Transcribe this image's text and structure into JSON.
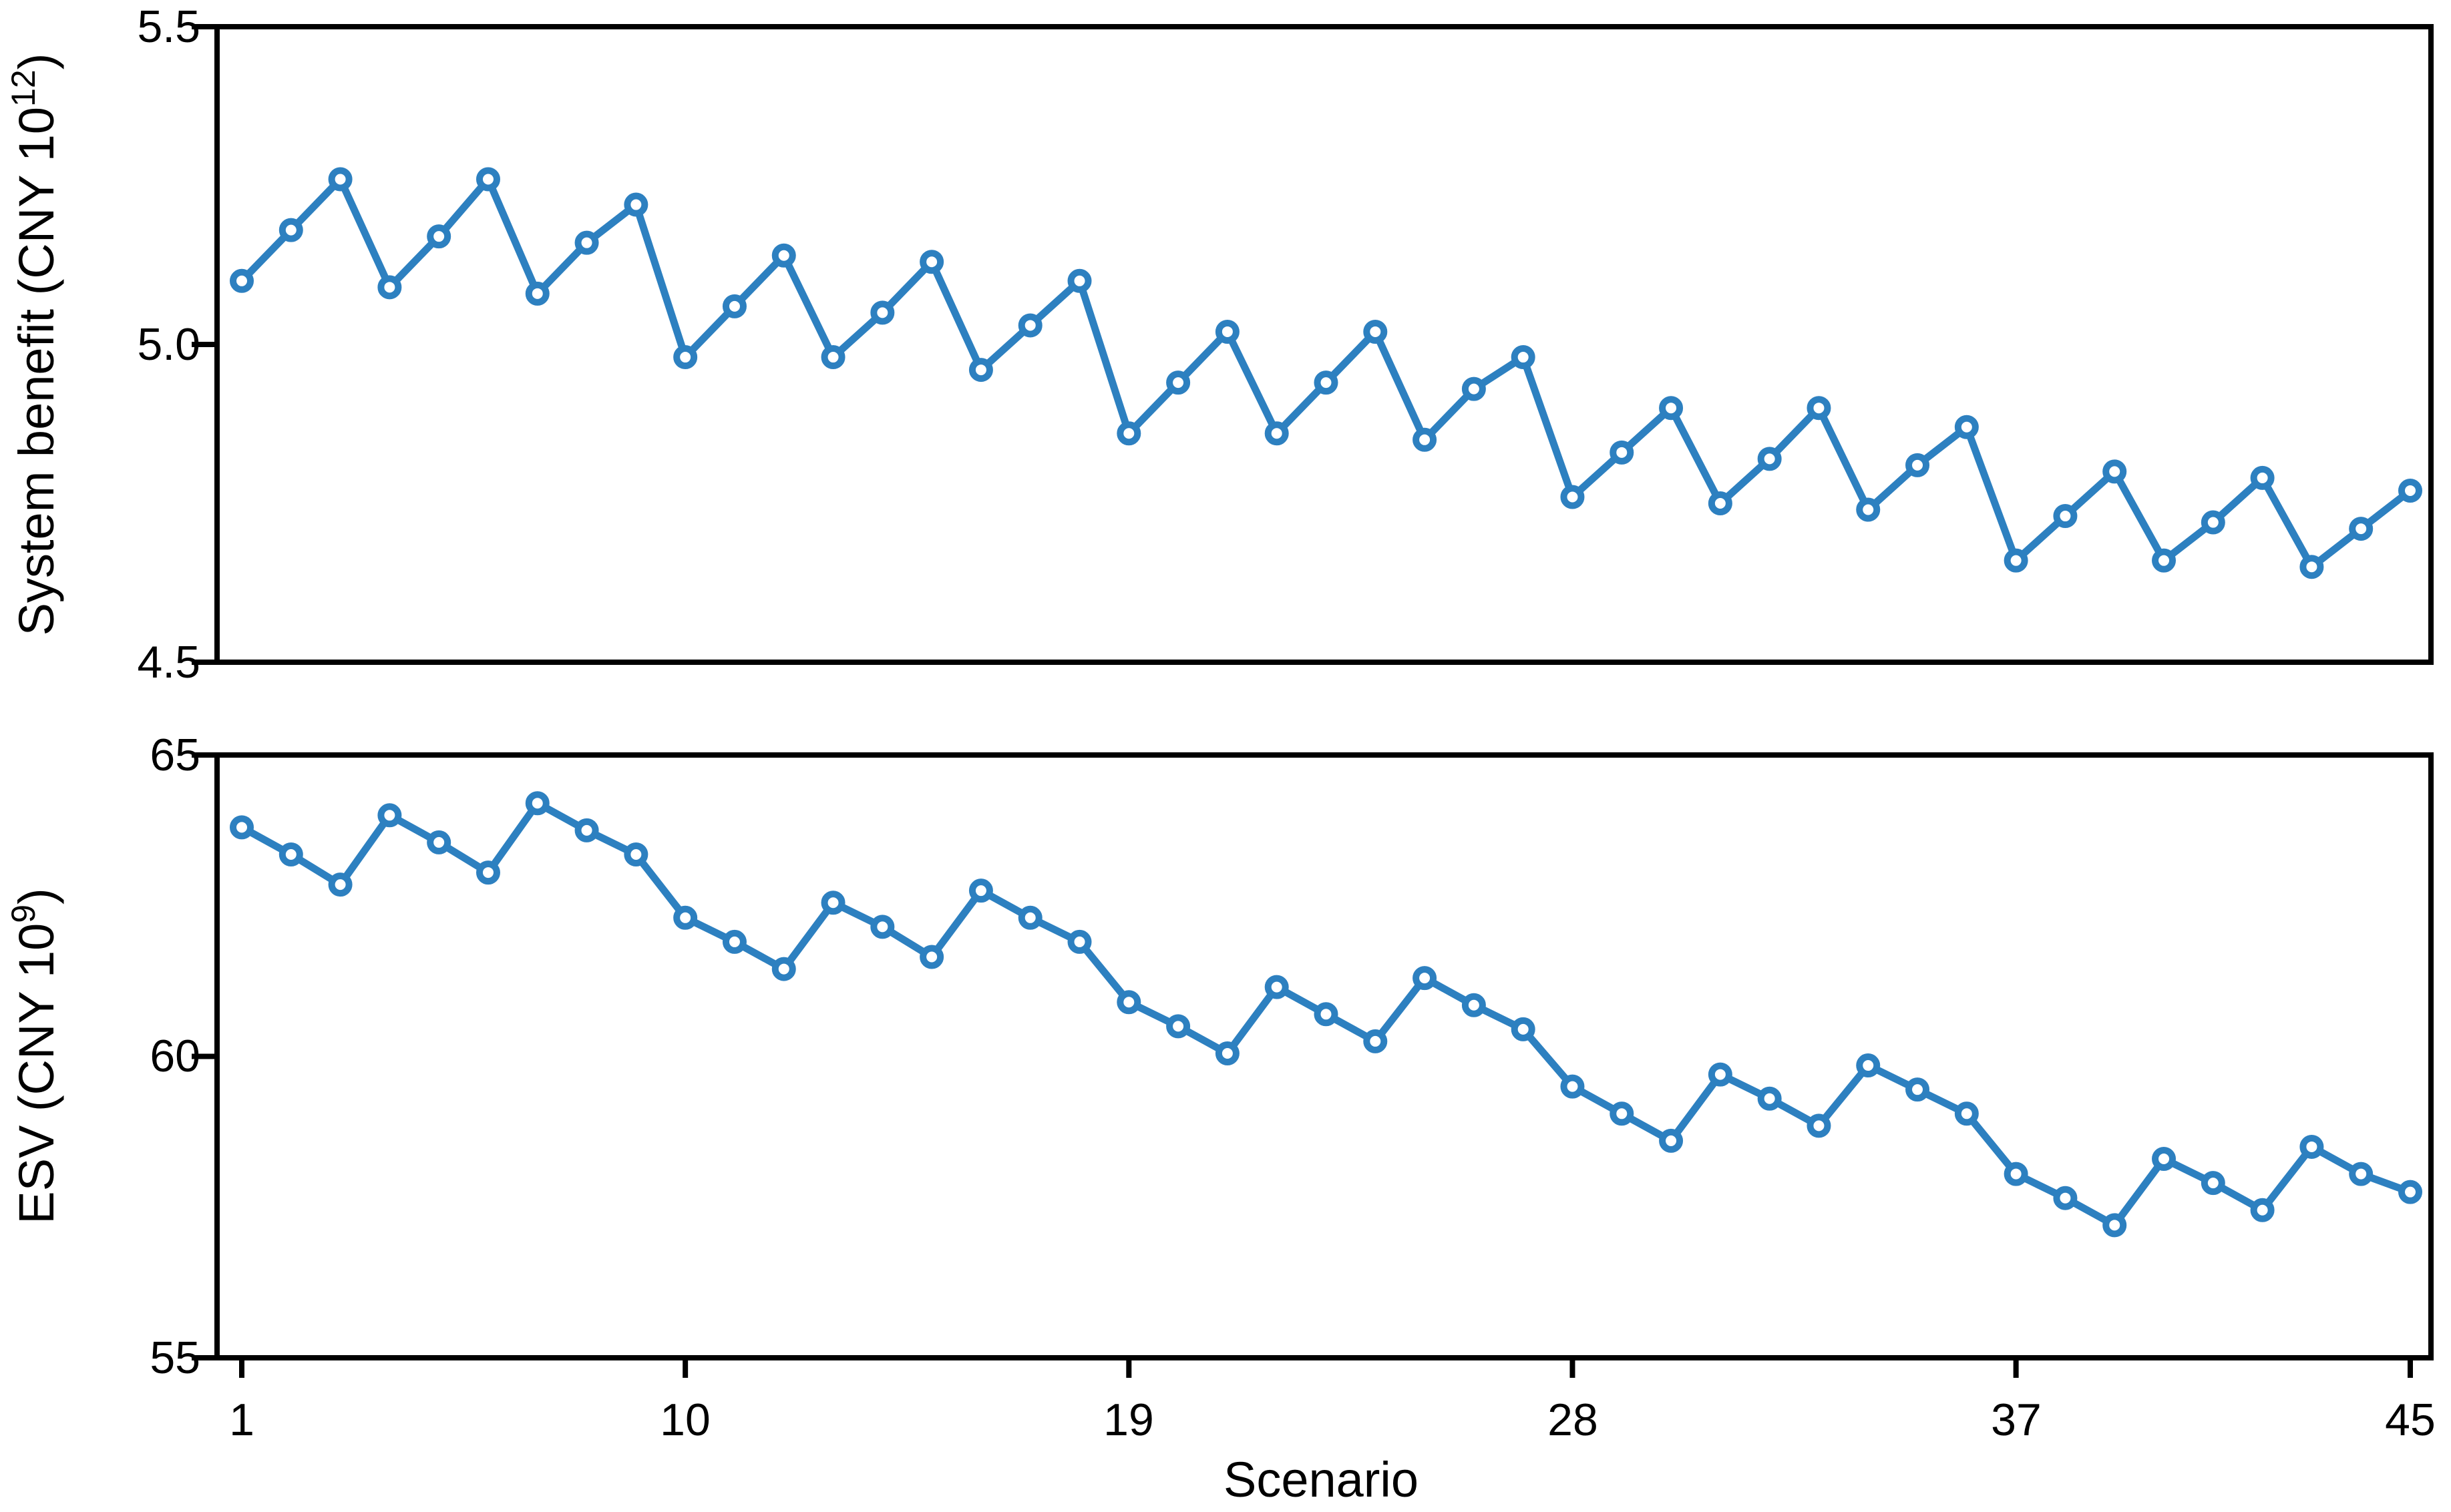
{
  "labels": {
    "xlabel": "Scenario",
    "x_ticks": [
      "1",
      "10",
      "19",
      "28",
      "37",
      "45"
    ],
    "benefit_ticks": [
      "5.5",
      "5.0",
      "4.5"
    ],
    "esv_ticks": [
      "65",
      "60",
      "55"
    ],
    "benefit_ylabel": {
      "pre": "System benefit (CNY 10",
      "sup": "12",
      "post": ")"
    },
    "esv_ylabel": {
      "pre": "ESV (CNY 10",
      "sup": "9",
      "post": ")"
    }
  },
  "colors": {
    "series": "#2d80c0",
    "marker_fill": "#ffffff",
    "axis": "#000000"
  },
  "chart_data": [
    {
      "type": "line",
      "panel": "top",
      "title": "",
      "xlabel": "Scenario",
      "ylabel": "System benefit (CNY 10^12)",
      "ylim": [
        4.5,
        5.5
      ],
      "yticks": [
        5.5,
        5.0,
        4.5
      ],
      "xticks": [
        1,
        10,
        19,
        28,
        37,
        45
      ],
      "xlim": [
        1,
        45
      ],
      "grid": false,
      "legend": "none",
      "marker": "open-circle",
      "x": [
        1,
        2,
        3,
        4,
        5,
        6,
        7,
        8,
        9,
        10,
        11,
        12,
        13,
        14,
        15,
        16,
        17,
        18,
        19,
        20,
        21,
        22,
        23,
        24,
        25,
        26,
        27,
        28,
        29,
        30,
        31,
        32,
        33,
        34,
        35,
        36,
        37,
        38,
        39,
        40,
        41,
        42,
        43,
        44,
        45
      ],
      "values": [
        5.1,
        5.18,
        5.26,
        5.09,
        5.17,
        5.26,
        5.08,
        5.16,
        5.22,
        4.98,
        5.06,
        5.14,
        4.98,
        5.05,
        5.13,
        4.96,
        5.03,
        5.1,
        4.86,
        4.94,
        5.02,
        4.86,
        4.94,
        5.02,
        4.85,
        4.93,
        4.98,
        4.76,
        4.83,
        4.9,
        4.75,
        4.82,
        4.9,
        4.74,
        4.81,
        4.87,
        4.66,
        4.73,
        4.8,
        4.66,
        4.72,
        4.79,
        4.65,
        4.71,
        4.77
      ]
    },
    {
      "type": "line",
      "panel": "bottom",
      "title": "",
      "xlabel": "Scenario",
      "ylabel": "ESV (CNY 10^9)",
      "ylim": [
        55,
        65
      ],
      "yticks": [
        65,
        60,
        55
      ],
      "xticks": [
        1,
        10,
        19,
        28,
        37,
        45
      ],
      "xlim": [
        1,
        45
      ],
      "grid": false,
      "legend": "none",
      "marker": "open-circle",
      "x": [
        1,
        2,
        3,
        4,
        5,
        6,
        7,
        8,
        9,
        10,
        11,
        12,
        13,
        14,
        15,
        16,
        17,
        18,
        19,
        20,
        21,
        22,
        23,
        24,
        25,
        26,
        27,
        28,
        29,
        30,
        31,
        32,
        33,
        34,
        35,
        36,
        37,
        38,
        39,
        40,
        41,
        42,
        43,
        44,
        45
      ],
      "values": [
        63.8,
        63.35,
        62.85,
        64.0,
        63.55,
        63.05,
        64.2,
        63.75,
        63.35,
        62.3,
        61.9,
        61.45,
        62.55,
        62.15,
        61.65,
        62.75,
        62.3,
        61.9,
        60.9,
        60.5,
        60.05,
        61.15,
        60.7,
        60.25,
        61.3,
        60.85,
        60.45,
        59.5,
        59.05,
        58.6,
        59.7,
        59.3,
        58.85,
        59.85,
        59.45,
        59.05,
        58.05,
        57.65,
        57.2,
        58.3,
        57.9,
        57.45,
        58.5,
        58.05,
        57.75
      ]
    }
  ]
}
